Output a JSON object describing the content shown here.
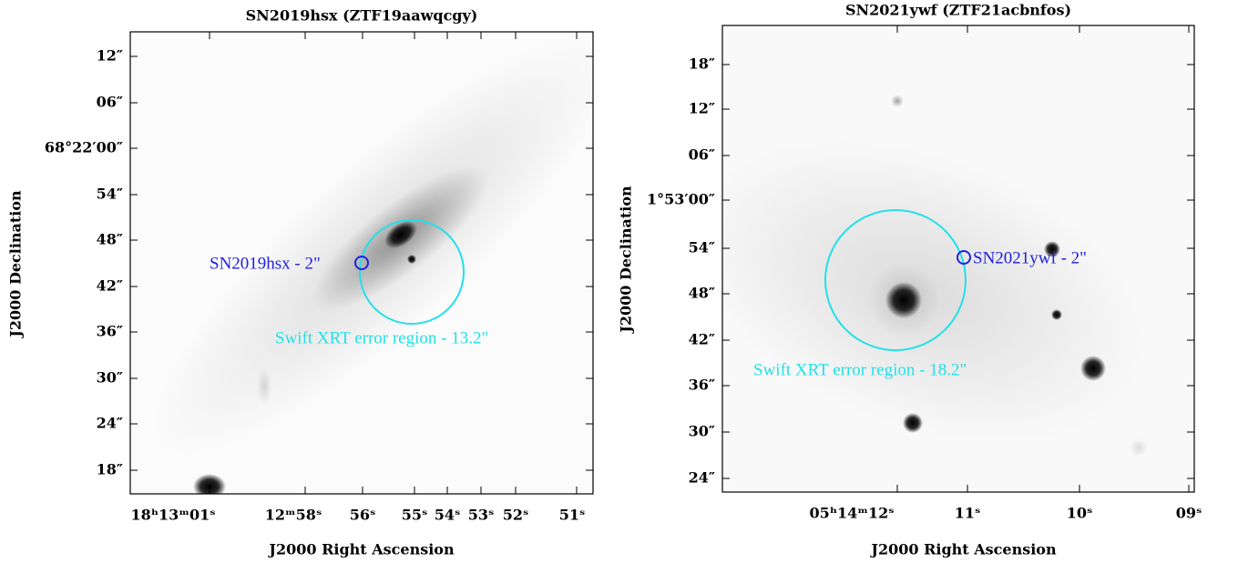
{
  "panels": [
    {
      "title": "SN2019hsx (ZTF19aawqcgy)",
      "x_label": "J2000 Right Ascension",
      "y_label": "J2000 Declination",
      "y_ticks": [
        "12″",
        "06″",
        "68°22′00″",
        "54″",
        "48″",
        "42″",
        "36″",
        "30″",
        "24″",
        "18″"
      ],
      "x_ticks": [
        "18ʰ13ᵐ01ˢ",
        "12ᵐ58ˢ",
        "56ˢ",
        "55ˢ",
        "54ˢ",
        "53ˢ",
        "52ˢ",
        "51ˢ"
      ],
      "sn_label": "SN2019hsx - 2\"",
      "xrt_label": "Swift XRT error region - 13.2\""
    },
    {
      "title": "SN2021ywf (ZTF21acbnfos)",
      "x_label": "J2000 Right Ascension",
      "y_label": "J2000 Declination",
      "y_ticks": [
        "18″",
        "12″",
        "06″",
        "1°53′00″",
        "54″",
        "48″",
        "42″",
        "36″",
        "30″",
        "24″"
      ],
      "x_ticks": [
        "05ʰ14ᵐ12ˢ",
        "11ˢ",
        "10ˢ",
        "09ˢ"
      ],
      "sn_label": "SN2021ywf - 2\"",
      "xrt_label": "Swift XRT error region - 18.2\""
    }
  ]
}
